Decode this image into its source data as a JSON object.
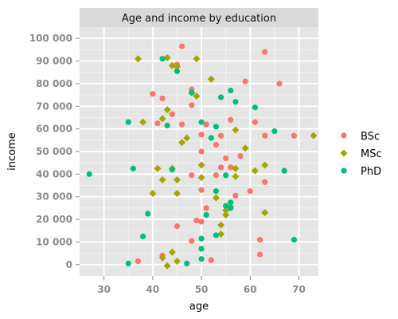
{
  "chart_data": {
    "type": "scatter",
    "title": "Age and income by education",
    "xlabel": "age",
    "ylabel": "income",
    "xlim": [
      25,
      74
    ],
    "ylim": [
      -5000,
      105000
    ],
    "x_ticks": [
      30,
      40,
      50,
      60,
      70
    ],
    "y_ticks": [
      0,
      10000,
      20000,
      30000,
      40000,
      50000,
      60000,
      70000,
      80000,
      90000,
      100000
    ],
    "x_tick_labels": [
      "30",
      "40",
      "50",
      "60",
      "70"
    ],
    "y_tick_labels": [
      "0",
      "10 000",
      "20 000",
      "30 000",
      "40 000",
      "50 000",
      "60 000",
      "70 000",
      "80 000",
      "90 000",
      "100 000"
    ],
    "grid": true,
    "legend_position": "right",
    "series": [
      {
        "name": "BSc",
        "color": "#f8766d",
        "marker": "circle",
        "points": [
          [
            46,
            96500
          ],
          [
            63,
            94000
          ],
          [
            45,
            88500
          ],
          [
            59,
            81000
          ],
          [
            66,
            80000
          ],
          [
            48,
            77500
          ],
          [
            40,
            75500
          ],
          [
            42,
            73500
          ],
          [
            48,
            70500
          ],
          [
            44,
            66500
          ],
          [
            41,
            62500
          ],
          [
            46,
            62000
          ],
          [
            51,
            62000
          ],
          [
            56,
            64000
          ],
          [
            61,
            63000
          ],
          [
            50,
            57500
          ],
          [
            54,
            57000
          ],
          [
            63,
            57000
          ],
          [
            69,
            57000
          ],
          [
            53,
            53000
          ],
          [
            50,
            50000
          ],
          [
            55,
            47000
          ],
          [
            58,
            48000
          ],
          [
            54,
            43000
          ],
          [
            56,
            43000
          ],
          [
            48,
            39500
          ],
          [
            53,
            39500
          ],
          [
            63,
            36500
          ],
          [
            50,
            33000
          ],
          [
            60,
            32500
          ],
          [
            57,
            30500
          ],
          [
            51,
            25000
          ],
          [
            49,
            19500
          ],
          [
            50,
            19000
          ],
          [
            45,
            17000
          ],
          [
            48,
            10500
          ],
          [
            62,
            11000
          ],
          [
            37,
            1500
          ],
          [
            42,
            4000
          ],
          [
            52,
            2000
          ],
          [
            62,
            4500
          ]
        ]
      },
      {
        "name": "MSc",
        "color": "#a3a500",
        "marker": "diamond",
        "points": [
          [
            37,
            91000
          ],
          [
            43,
            91500
          ],
          [
            44,
            88000
          ],
          [
            45,
            87500
          ],
          [
            49,
            91000
          ],
          [
            52,
            82000
          ],
          [
            48,
            76000
          ],
          [
            49,
            74500
          ],
          [
            43,
            68500
          ],
          [
            42,
            64500
          ],
          [
            38,
            63000
          ],
          [
            47,
            56000
          ],
          [
            46,
            54000
          ],
          [
            57,
            59500
          ],
          [
            59,
            51500
          ],
          [
            73,
            57000
          ],
          [
            50,
            44000
          ],
          [
            57,
            42500
          ],
          [
            61,
            41500
          ],
          [
            63,
            44000
          ],
          [
            41,
            42500
          ],
          [
            44,
            42500
          ],
          [
            42,
            37500
          ],
          [
            45,
            37500
          ],
          [
            50,
            38500
          ],
          [
            57,
            39000
          ],
          [
            40,
            31500
          ],
          [
            45,
            31500
          ],
          [
            53,
            29500
          ],
          [
            56,
            25500
          ],
          [
            55,
            22000
          ],
          [
            55,
            24000
          ],
          [
            63,
            23000
          ],
          [
            54,
            17500
          ],
          [
            54,
            13500
          ],
          [
            44,
            5500
          ],
          [
            42,
            3000
          ],
          [
            45,
            1500
          ],
          [
            43,
            -500
          ]
        ]
      },
      {
        "name": "PhD",
        "color": "#00bf7d",
        "marker": "circle",
        "points": [
          [
            42,
            91000
          ],
          [
            45,
            85500
          ],
          [
            48,
            76000
          ],
          [
            54,
            74000
          ],
          [
            56,
            77000
          ],
          [
            57,
            72000
          ],
          [
            61,
            69500
          ],
          [
            35,
            63000
          ],
          [
            43,
            61500
          ],
          [
            50,
            63000
          ],
          [
            53,
            61000
          ],
          [
            65,
            59000
          ],
          [
            52,
            56000
          ],
          [
            36,
            42500
          ],
          [
            44,
            42000
          ],
          [
            67,
            41500
          ],
          [
            27,
            40000
          ],
          [
            55,
            39500
          ],
          [
            53,
            32500
          ],
          [
            55,
            26000
          ],
          [
            56,
            27500
          ],
          [
            56,
            25000
          ],
          [
            51,
            22000
          ],
          [
            39,
            22500
          ],
          [
            53,
            13000
          ],
          [
            38,
            12500
          ],
          [
            50,
            11500
          ],
          [
            69,
            11000
          ],
          [
            50,
            7000
          ],
          [
            50,
            2500
          ],
          [
            35,
            500
          ],
          [
            47,
            500
          ]
        ]
      }
    ]
  }
}
